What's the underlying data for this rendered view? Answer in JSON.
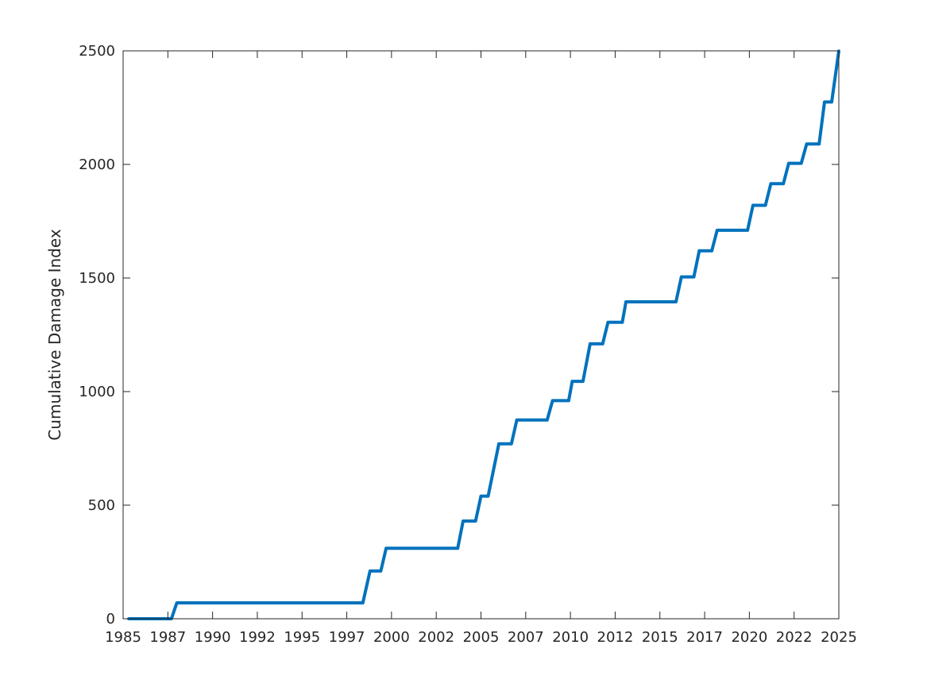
{
  "chart_data": {
    "type": "line",
    "title": "",
    "xlabel": "",
    "ylabel": "Cumulative Damage Index",
    "xlim": [
      1985,
      2025
    ],
    "ylim": [
      0,
      2500
    ],
    "x_ticks": [
      {
        "value": 1985.0,
        "label": "1985"
      },
      {
        "value": 1987.5,
        "label": "1987"
      },
      {
        "value": 1990.0,
        "label": "1990"
      },
      {
        "value": 1992.5,
        "label": "1992"
      },
      {
        "value": 1995.0,
        "label": "1995"
      },
      {
        "value": 1997.5,
        "label": "1997"
      },
      {
        "value": 2000.0,
        "label": "2000"
      },
      {
        "value": 2002.5,
        "label": "2002"
      },
      {
        "value": 2005.0,
        "label": "2005"
      },
      {
        "value": 2007.5,
        "label": "2007"
      },
      {
        "value": 2010.0,
        "label": "2010"
      },
      {
        "value": 2012.5,
        "label": "2012"
      },
      {
        "value": 2015.0,
        "label": "2015"
      },
      {
        "value": 2017.5,
        "label": "2017"
      },
      {
        "value": 2020.0,
        "label": "2020"
      },
      {
        "value": 2022.5,
        "label": "2022"
      },
      {
        "value": 2025.0,
        "label": "2025"
      }
    ],
    "y_ticks": [
      {
        "value": 0,
        "label": "0"
      },
      {
        "value": 500,
        "label": "500"
      },
      {
        "value": 1000,
        "label": "1000"
      },
      {
        "value": 1500,
        "label": "1500"
      },
      {
        "value": 2000,
        "label": "2000"
      },
      {
        "value": 2500,
        "label": "2500"
      }
    ],
    "grid": false,
    "box": true,
    "line_color": "#0072BD",
    "axis_color": "#262626",
    "series": [
      {
        "x": [
          1985.3,
          1987.7,
          1988.0,
          1998.4,
          1998.8,
          1999.4,
          1999.7,
          2003.7,
          2004.0,
          2004.7,
          2005.0,
          2005.4,
          2006.0,
          2006.7,
          2007.0,
          2008.7,
          2009.0,
          2009.9,
          2010.1,
          2010.7,
          2011.1,
          2011.8,
          2012.1,
          2012.9,
          2013.1,
          2015.9,
          2016.2,
          2016.9,
          2017.2,
          2017.9,
          2018.2,
          2019.9,
          2020.2,
          2020.9,
          2021.2,
          2021.9,
          2022.2,
          2022.9,
          2023.2,
          2023.9,
          2024.2,
          2024.6,
          2025.0
        ],
        "y": [
          0,
          0,
          70,
          70,
          210,
          210,
          310,
          310,
          430,
          430,
          540,
          540,
          770,
          770,
          875,
          875,
          960,
          960,
          1045,
          1045,
          1210,
          1210,
          1305,
          1305,
          1395,
          1395,
          1505,
          1505,
          1620,
          1620,
          1710,
          1710,
          1820,
          1820,
          1915,
          1915,
          2005,
          2005,
          2090,
          2090,
          2275,
          2275,
          2500
        ]
      }
    ]
  }
}
